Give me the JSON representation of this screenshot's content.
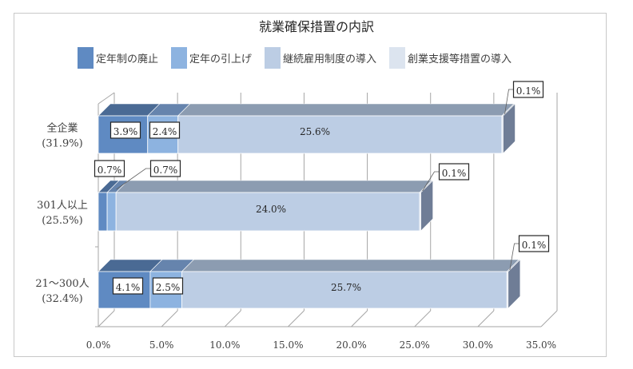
{
  "chart_data": {
    "type": "bar",
    "orientation": "horizontal",
    "stacked": true,
    "style": "3d",
    "title": "就業確保措置の内訳",
    "xlabel": "",
    "ylabel": "",
    "xlim": [
      0,
      35
    ],
    "x_ticks": [
      "0.0%",
      "5.0%",
      "10.0%",
      "15.0%",
      "20.0%",
      "25.0%",
      "30.0%",
      "35.0%"
    ],
    "legend_position": "top",
    "categories": [
      {
        "name": "全企業",
        "total": "(31.9%)"
      },
      {
        "name": "301人以上",
        "total": "(25.5%)"
      },
      {
        "name": "21～300人",
        "total": "(32.4%)"
      }
    ],
    "series": [
      {
        "name": "定年制の廃止",
        "color": "#5f8ac2",
        "values": [
          3.9,
          0.7,
          4.1
        ],
        "labels": [
          "3.9%",
          "0.7%",
          "4.1%"
        ]
      },
      {
        "name": "定年の引上げ",
        "color": "#8db3e0",
        "values": [
          2.4,
          0.7,
          2.5
        ],
        "labels": [
          "2.4%",
          "0.7%",
          "2.5%"
        ]
      },
      {
        "name": "継続雇用制度の導入",
        "color": "#bccde4",
        "values": [
          25.6,
          24.0,
          25.7
        ],
        "labels": [
          "25.6%",
          "24.0%",
          "25.7%"
        ]
      },
      {
        "name": "創業支援等措置の導入",
        "color": "#dce4ef",
        "values": [
          0.1,
          0.1,
          0.1
        ],
        "labels": [
          "0.1%",
          "0.1%",
          "0.1%"
        ]
      }
    ]
  },
  "legend": [
    {
      "label": "定年制の廃止",
      "color": "#5f8ac2"
    },
    {
      "label": "定年の引上げ",
      "color": "#8db3e0"
    },
    {
      "label": "継続雇用制度の導入",
      "color": "#bccde4"
    },
    {
      "label": "創業支援等措置の導入",
      "color": "#dce4ef"
    }
  ]
}
